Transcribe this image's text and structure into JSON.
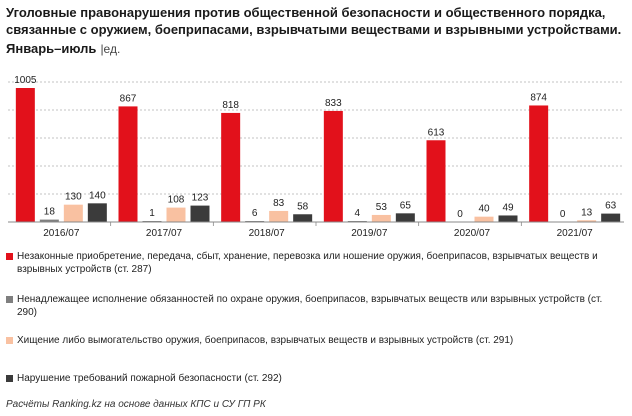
{
  "header": {
    "title": "Уголовные правонарушения против общественной безопасности и общественного порядка, связанные с оружием, боеприпасами, взрывчатыми веществами и взрывными устройствами.",
    "period": "Январь–июль",
    "unit": "|ед."
  },
  "colors": {
    "red": "#e2111b",
    "gray": "#7f7f7f",
    "peach": "#f9c1a1",
    "dark": "#3b3b3b",
    "grid": "#b0b0b0"
  },
  "chart_data": {
    "type": "bar",
    "categories": [
      "2016/07",
      "2017/07",
      "2018/07",
      "2019/07",
      "2020/07",
      "2021/07"
    ],
    "series": [
      {
        "name": "Незаконные приобретение, передача, сбыт, хранение, перевозка или ношение оружия, боеприпасов, взрывчатых веществ и взрывных устройств (ст. 287)",
        "values": [
          1005,
          867,
          818,
          833,
          613,
          874
        ]
      },
      {
        "name": "Ненадлежащее исполнение обязанностей по охране оружия, боеприпасов, взрывчатых веществ или взрывных устройств (ст. 290)",
        "values": [
          18,
          1,
          6,
          4,
          0,
          0
        ]
      },
      {
        "name": "Хищение либо вымогательство оружия, боеприпасов, взрывчатых веществ и взрывных устройств (ст. 291)",
        "values": [
          130,
          108,
          83,
          53,
          40,
          13
        ]
      },
      {
        "name": "Нарушение требований пожарной безопасности (ст. 292)",
        "values": [
          140,
          123,
          58,
          65,
          49,
          63
        ]
      }
    ],
    "ylim": [
      0,
      1050
    ],
    "grid": true
  },
  "footer": "Расчёты Ranking.kz на основе данных КПС и СУ ГП РК"
}
